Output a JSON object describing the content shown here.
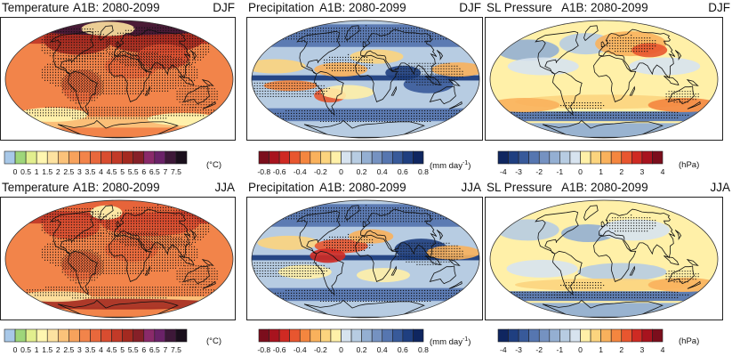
{
  "panels": [
    {
      "id": "t-djf",
      "variable": "Temperature",
      "scenario": "A1B: 2080-2099",
      "season": "DJF",
      "field": "temp"
    },
    {
      "id": "p-djf",
      "variable": "Precipitation",
      "scenario": "A1B: 2080-2099",
      "season": "DJF",
      "field": "precip"
    },
    {
      "id": "s-djf",
      "variable": "SL Pressure",
      "scenario": "A1B: 2080-2099",
      "season": "DJF",
      "field": "slp"
    },
    {
      "id": "t-jja",
      "variable": "Temperature",
      "scenario": "A1B: 2080-2099",
      "season": "JJA",
      "field": "temp"
    },
    {
      "id": "p-jja",
      "variable": "Precipitation",
      "scenario": "A1B: 2080-2099",
      "season": "JJA",
      "field": "precip"
    },
    {
      "id": "s-jja",
      "variable": "SL Pressure",
      "scenario": "A1B: 2080-2099",
      "season": "JJA",
      "field": "slp"
    }
  ],
  "colorbars": {
    "temperature": {
      "unit": "(°C)",
      "labels": [
        "0",
        "0.5",
        "1",
        "1.5",
        "2",
        "2.5",
        "3",
        "3.5",
        "4",
        "4.5",
        "5",
        "5.5",
        "6",
        "6.5",
        "7",
        "7.5"
      ],
      "colors": [
        "#a8c8e8",
        "#9ed67a",
        "#e2ef8e",
        "#fff6b0",
        "#fde2a0",
        "#fbc27a",
        "#f7a25c",
        "#f2844a",
        "#e9683c",
        "#d94d30",
        "#c23a28",
        "#a42a20",
        "#862028",
        "#8a2a6a",
        "#6a2268",
        "#3d1838",
        "#1a0f1c"
      ]
    },
    "precipitation": {
      "unit_main": "(mm day",
      "unit_sup": "-1",
      "unit_close": ")",
      "labels": [
        "-0.8",
        "-0.6",
        "-0.4",
        "-0.2",
        "0",
        "0.2",
        "0.4",
        "0.6",
        "0.8"
      ],
      "colors": [
        "#7b0e1c",
        "#a8131e",
        "#cf2a23",
        "#e8562f",
        "#f4863f",
        "#f9b15c",
        "#fcd47e",
        "#fff0a8",
        "#d7e3ef",
        "#b7cce2",
        "#94afd2",
        "#7592c1",
        "#5676b0",
        "#385a9a",
        "#1f3f80",
        "#0f2660"
      ]
    },
    "pressure": {
      "unit": "(hPa)",
      "labels": [
        "-4",
        "-3",
        "-2",
        "-1",
        "0",
        "1",
        "2",
        "3",
        "4"
      ],
      "colors": [
        "#0f2660",
        "#1f3f80",
        "#385a9a",
        "#5676b0",
        "#7592c1",
        "#94afd2",
        "#b7cce2",
        "#d7e3ef",
        "#fff0a8",
        "#fcd47e",
        "#f9b15c",
        "#f4863f",
        "#e8562f",
        "#cf2a23",
        "#a8131e",
        "#7b0e1c"
      ]
    }
  }
}
